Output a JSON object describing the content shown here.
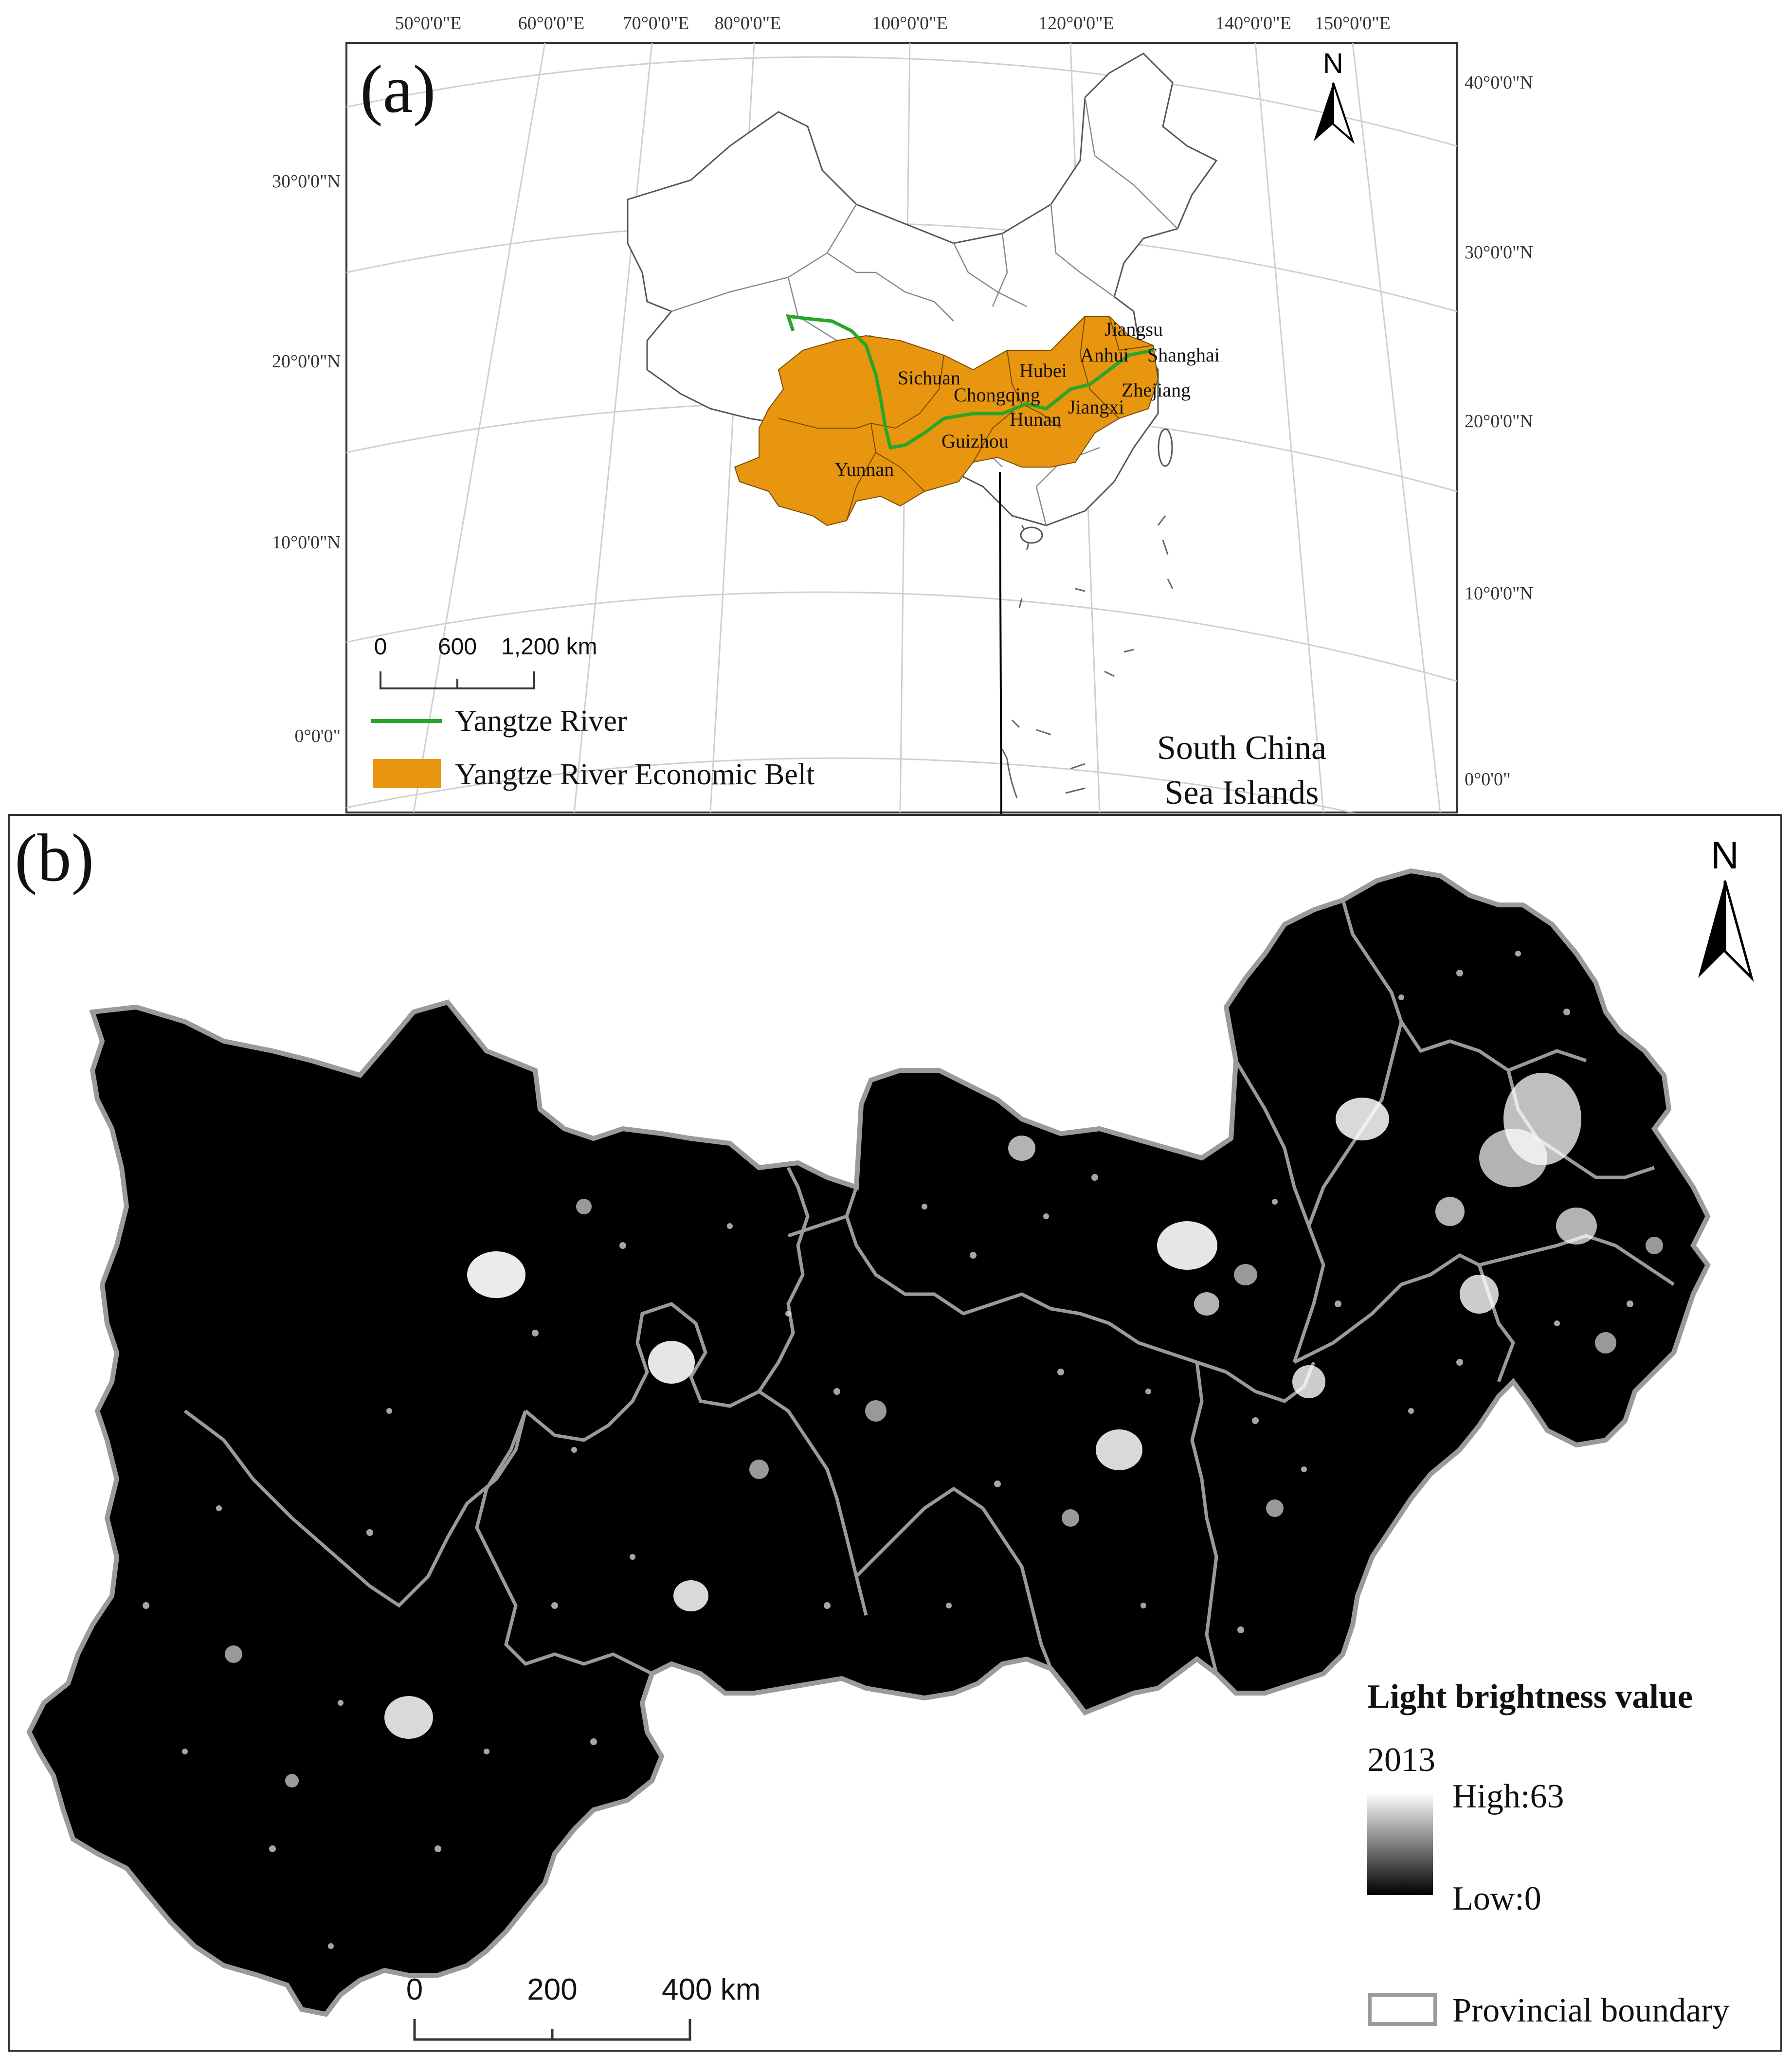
{
  "panel_a": {
    "label": "(a)",
    "north": "N",
    "lon_labels": [
      "50°0'0\"E",
      "60°0'0\"E",
      "70°0'0\"E",
      "80°0'0\"E",
      "100°0'0\"E",
      "120°0'0\"E",
      "140°0'0\"E",
      "150°0'0\"E"
    ],
    "lat_labels_left": [
      "30°0'0\"N",
      "20°0'0\"N",
      "10°0'0\"N",
      "0°0'0\""
    ],
    "lat_labels_right": [
      "40°0'0\"N",
      "30°0'0\"N",
      "20°0'0\"N",
      "10°0'0\"N",
      "0°0'0\""
    ],
    "provinces": [
      "Jiangsu",
      "Anhui",
      "Shanghai",
      "Sichuan",
      "Hubei",
      "Chongqing",
      "Zhejiang",
      "Jiangxi",
      "Hunan",
      "Guizhou",
      "Yunnan"
    ],
    "scale_ticks": [
      "0",
      "600",
      "1,200 km"
    ],
    "legend": {
      "river": "Yangtze River",
      "belt": "Yangtze River Economic Belt"
    },
    "inset_label": [
      "South China",
      "Sea Islands"
    ]
  },
  "panel_b": {
    "label": "(b)",
    "north": "N",
    "legend_title": "Light brightness value",
    "year": "2013",
    "high": "High:63",
    "low": "Low:0",
    "scale_ticks": [
      "0",
      "200",
      "400 km"
    ],
    "boundary_label": "Provincial boundary"
  },
  "colors": {
    "belt": "#e8960f",
    "river": "#2aa52a",
    "boundary": "#9a9a9a",
    "night": "#000000"
  }
}
